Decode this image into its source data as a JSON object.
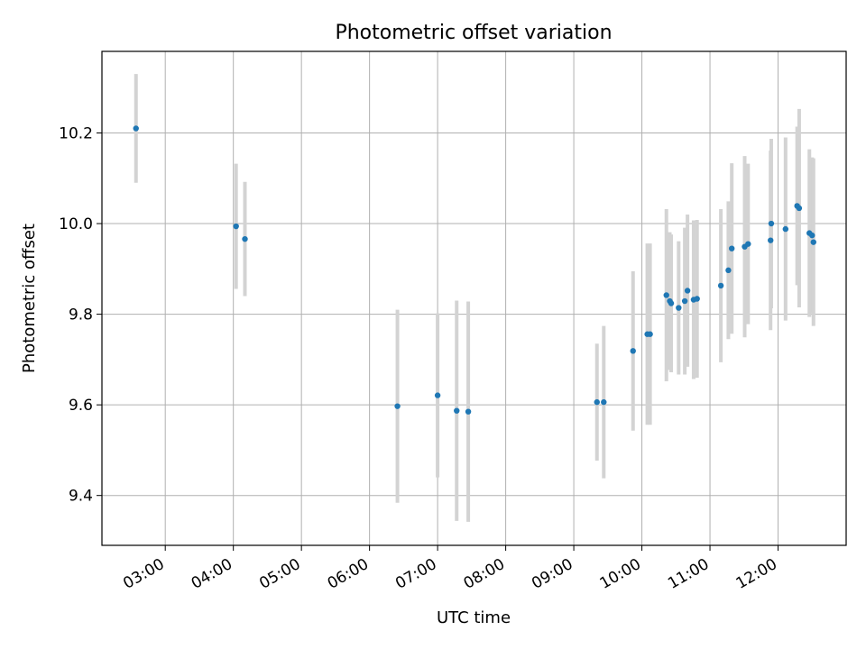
{
  "chart_data": {
    "type": "scatter",
    "title": "Photometric offset variation",
    "xlabel": "UTC time",
    "ylabel": "Photometric offset",
    "x_unit": "UTC hours",
    "xlim": [
      2.07,
      13.0
    ],
    "ylim": [
      9.29,
      10.38
    ],
    "grid": true,
    "x_ticks": [
      3,
      4,
      5,
      6,
      7,
      8,
      9,
      10,
      11,
      12
    ],
    "x_tick_labels": [
      "03:00",
      "04:00",
      "05:00",
      "06:00",
      "07:00",
      "08:00",
      "09:00",
      "10:00",
      "11:00",
      "12:00"
    ],
    "y_ticks": [
      9.4,
      9.6,
      9.8,
      10.0,
      10.2
    ],
    "y_tick_labels": [
      "9.4",
      "9.6",
      "9.8",
      "10.0",
      "10.2"
    ],
    "colors": {
      "point": "#1f77b4",
      "errorbar": "#d3d3d3",
      "grid": "#b0b0b0"
    },
    "series": [
      {
        "points": [
          {
            "x": 2.57,
            "y": 10.21,
            "err": 0.12
          },
          {
            "x": 4.04,
            "y": 9.994,
            "err": 0.138
          },
          {
            "x": 4.17,
            "y": 9.966,
            "err": 0.126
          },
          {
            "x": 6.41,
            "y": 9.597,
            "err": 0.213
          },
          {
            "x": 7.0,
            "y": 9.621,
            "err": 0.181
          },
          {
            "x": 7.28,
            "y": 9.587,
            "err": 0.243
          },
          {
            "x": 7.45,
            "y": 9.585,
            "err": 0.243
          },
          {
            "x": 9.34,
            "y": 9.606,
            "err": 0.129
          },
          {
            "x": 9.44,
            "y": 9.606,
            "err": 0.168
          },
          {
            "x": 9.87,
            "y": 9.719,
            "err": 0.176
          },
          {
            "x": 10.08,
            "y": 9.756,
            "err": 0.2
          },
          {
            "x": 10.12,
            "y": 9.756,
            "err": 0.2
          },
          {
            "x": 10.36,
            "y": 9.842,
            "err": 0.19
          },
          {
            "x": 10.41,
            "y": 9.829,
            "err": 0.152
          },
          {
            "x": 10.43,
            "y": 9.824,
            "err": 0.152
          },
          {
            "x": 10.54,
            "y": 9.814,
            "err": 0.147
          },
          {
            "x": 10.63,
            "y": 9.829,
            "err": 0.162
          },
          {
            "x": 10.67,
            "y": 9.852,
            "err": 0.168
          },
          {
            "x": 10.76,
            "y": 9.832,
            "err": 0.175
          },
          {
            "x": 10.81,
            "y": 9.834,
            "err": 0.174
          },
          {
            "x": 11.16,
            "y": 9.863,
            "err": 0.169
          },
          {
            "x": 11.27,
            "y": 9.897,
            "err": 0.152
          },
          {
            "x": 11.32,
            "y": 9.945,
            "err": 0.188
          },
          {
            "x": 11.51,
            "y": 9.949,
            "err": 0.2
          },
          {
            "x": 11.56,
            "y": 9.955,
            "err": 0.177
          },
          {
            "x": 11.89,
            "y": 9.963,
            "err": 0.198
          },
          {
            "x": 11.9,
            "y": 10.0,
            "err": 0.187
          },
          {
            "x": 12.11,
            "y": 9.988,
            "err": 0.202
          },
          {
            "x": 12.28,
            "y": 10.039,
            "err": 0.175
          },
          {
            "x": 12.31,
            "y": 10.034,
            "err": 0.219
          },
          {
            "x": 12.46,
            "y": 9.979,
            "err": 0.185
          },
          {
            "x": 12.5,
            "y": 9.974,
            "err": 0.172
          },
          {
            "x": 12.52,
            "y": 9.959,
            "err": 0.185
          }
        ]
      }
    ]
  }
}
